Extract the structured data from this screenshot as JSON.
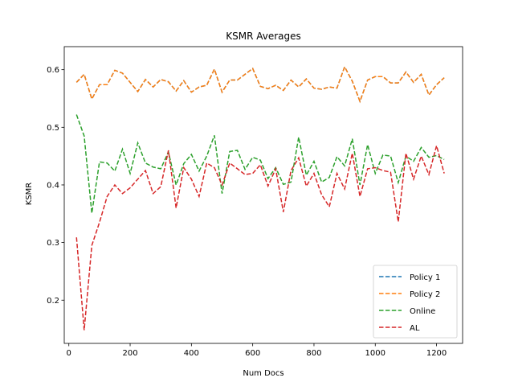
{
  "chart_data": {
    "type": "line",
    "title": "KSMR Averages",
    "xlabel": "Num Docs",
    "ylabel": "KSMR",
    "xlim": [
      -15,
      1285
    ],
    "ylim": [
      0.125,
      0.64
    ],
    "xticks": [
      0,
      200,
      400,
      600,
      800,
      1000,
      1200
    ],
    "yticks": [
      0.2,
      0.3,
      0.4,
      0.5,
      0.6
    ],
    "legend_position": "lower-right",
    "grid": false,
    "line_style": "dashed",
    "x": [
      25,
      50,
      75,
      100,
      125,
      150,
      175,
      200,
      225,
      250,
      275,
      300,
      325,
      350,
      375,
      400,
      425,
      450,
      475,
      500,
      525,
      550,
      575,
      600,
      625,
      650,
      675,
      700,
      725,
      750,
      775,
      800,
      825,
      850,
      875,
      900,
      925,
      950,
      975,
      1000,
      1025,
      1050,
      1075,
      1100,
      1125,
      1150,
      1175,
      1200,
      1225
    ],
    "series": [
      {
        "name": "Policy 1",
        "color": "#1f77b4",
        "values": [
          0.578,
          0.592,
          0.549,
          0.574,
          0.574,
          0.599,
          0.594,
          0.578,
          0.562,
          0.583,
          0.57,
          0.583,
          0.579,
          0.563,
          0.581,
          0.561,
          0.57,
          0.573,
          0.601,
          0.561,
          0.582,
          0.582,
          0.592,
          0.602,
          0.571,
          0.567,
          0.573,
          0.564,
          0.582,
          0.57,
          0.584,
          0.568,
          0.566,
          0.57,
          0.568,
          0.605,
          0.58,
          0.545,
          0.582,
          0.588,
          0.588,
          0.577,
          0.577,
          0.596,
          0.578,
          0.592,
          0.556,
          0.574,
          0.586
        ]
      },
      {
        "name": "Policy 2",
        "color": "#ff7f0e",
        "values": [
          0.578,
          0.592,
          0.549,
          0.574,
          0.574,
          0.599,
          0.594,
          0.578,
          0.562,
          0.583,
          0.57,
          0.583,
          0.579,
          0.563,
          0.581,
          0.561,
          0.57,
          0.573,
          0.601,
          0.561,
          0.582,
          0.582,
          0.592,
          0.602,
          0.571,
          0.567,
          0.573,
          0.564,
          0.582,
          0.57,
          0.584,
          0.568,
          0.566,
          0.57,
          0.568,
          0.605,
          0.58,
          0.545,
          0.582,
          0.588,
          0.588,
          0.577,
          0.577,
          0.596,
          0.578,
          0.592,
          0.556,
          0.574,
          0.586
        ]
      },
      {
        "name": "Online",
        "color": "#2ca02c",
        "values": [
          0.522,
          0.485,
          0.351,
          0.44,
          0.438,
          0.424,
          0.462,
          0.42,
          0.473,
          0.438,
          0.431,
          0.428,
          0.457,
          0.4,
          0.437,
          0.453,
          0.424,
          0.45,
          0.486,
          0.385,
          0.458,
          0.46,
          0.427,
          0.448,
          0.443,
          0.411,
          0.43,
          0.401,
          0.405,
          0.483,
          0.417,
          0.441,
          0.405,
          0.413,
          0.449,
          0.433,
          0.48,
          0.4,
          0.47,
          0.42,
          0.452,
          0.45,
          0.404,
          0.45,
          0.441,
          0.465,
          0.448,
          0.451,
          0.444
        ]
      },
      {
        "name": "AL",
        "color": "#d62728",
        "values": [
          0.309,
          0.148,
          0.295,
          0.335,
          0.38,
          0.4,
          0.385,
          0.395,
          0.41,
          0.425,
          0.385,
          0.397,
          0.46,
          0.36,
          0.43,
          0.41,
          0.38,
          0.438,
          0.43,
          0.4,
          0.438,
          0.428,
          0.418,
          0.42,
          0.435,
          0.398,
          0.428,
          0.353,
          0.425,
          0.447,
          0.398,
          0.42,
          0.383,
          0.362,
          0.42,
          0.393,
          0.455,
          0.38,
          0.428,
          0.43,
          0.425,
          0.422,
          0.336,
          0.455,
          0.41,
          0.45,
          0.418,
          0.468,
          0.42
        ]
      }
    ]
  }
}
